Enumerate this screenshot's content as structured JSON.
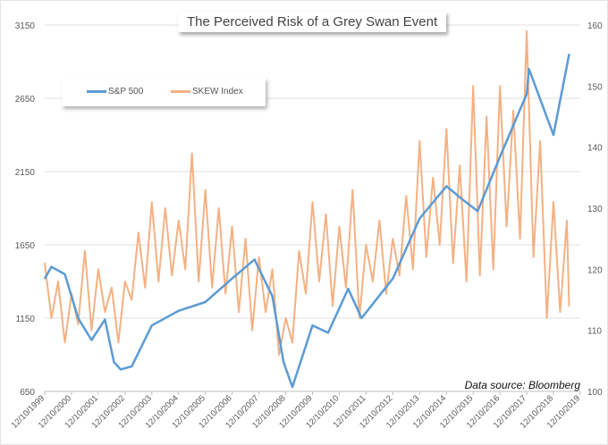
{
  "chart_data": {
    "type": "line",
    "title": "The Perceived Risk of a Grey Swan Event",
    "annotation": "Data source: Bloomberg",
    "legend_position": "top-left",
    "grid": true,
    "y_left": {
      "ylim": [
        650,
        3150
      ],
      "ticks": [
        "650",
        "1150",
        "1650",
        "2150",
        "2650",
        "3150"
      ]
    },
    "y_right": {
      "ylim": [
        100,
        160
      ],
      "ticks": [
        "100",
        "110",
        "120",
        "130",
        "140",
        "150",
        "160"
      ]
    },
    "x_ticks": [
      "12/10/1999",
      "12/10/2000",
      "12/10/2001",
      "12/10/2002",
      "12/10/2003",
      "12/10/2004",
      "12/10/2005",
      "12/10/2006",
      "12/10/2007",
      "12/10/2008",
      "12/10/2009",
      "12/10/2010",
      "12/10/2011",
      "12/10/2012",
      "12/10/2013",
      "12/10/2014",
      "12/10/2015",
      "12/10/2016",
      "12/10/2017",
      "12/10/2018",
      "12/10/2019"
    ],
    "xlim": [
      "1999-12",
      "2019-12"
    ],
    "series": [
      {
        "name": "S&P 500",
        "axis": "left",
        "color": "#5b9bd5",
        "x": [
          "1999-12",
          "2000-03",
          "2000-09",
          "2001-03",
          "2001-09",
          "2002-03",
          "2002-07",
          "2002-10",
          "2003-03",
          "2003-12",
          "2004-12",
          "2005-12",
          "2006-12",
          "2007-10",
          "2008-06",
          "2008-11",
          "2009-03",
          "2009-12",
          "2010-07",
          "2011-04",
          "2011-10",
          "2012-12",
          "2013-12",
          "2014-12",
          "2015-08",
          "2016-02",
          "2016-12",
          "2017-12",
          "2018-01",
          "2018-12",
          "2019-07"
        ],
        "values": [
          1420,
          1500,
          1450,
          1150,
          1000,
          1140,
          850,
          800,
          820,
          1100,
          1200,
          1260,
          1420,
          1550,
          1300,
          850,
          680,
          1100,
          1050,
          1350,
          1150,
          1420,
          1830,
          2050,
          1950,
          1880,
          2250,
          2680,
          2850,
          2400,
          2950
        ]
      },
      {
        "name": "SKEW Index",
        "axis": "right",
        "color": "#f4b183",
        "x": [
          "1999-12",
          "2000-03",
          "2000-06",
          "2000-09",
          "2000-12",
          "2001-03",
          "2001-06",
          "2001-09",
          "2001-12",
          "2002-03",
          "2002-06",
          "2002-09",
          "2002-12",
          "2003-03",
          "2003-06",
          "2003-09",
          "2003-12",
          "2004-03",
          "2004-06",
          "2004-09",
          "2004-12",
          "2005-03",
          "2005-06",
          "2005-09",
          "2005-12",
          "2006-03",
          "2006-06",
          "2006-09",
          "2006-12",
          "2007-03",
          "2007-06",
          "2007-09",
          "2007-12",
          "2008-03",
          "2008-06",
          "2008-09",
          "2008-12",
          "2009-03",
          "2009-06",
          "2009-09",
          "2009-12",
          "2010-03",
          "2010-06",
          "2010-09",
          "2010-12",
          "2011-03",
          "2011-06",
          "2011-09",
          "2011-12",
          "2012-03",
          "2012-06",
          "2012-09",
          "2012-12",
          "2013-03",
          "2013-06",
          "2013-09",
          "2013-12",
          "2014-03",
          "2014-06",
          "2014-09",
          "2014-12",
          "2015-03",
          "2015-06",
          "2015-09",
          "2015-12",
          "2016-03",
          "2016-06",
          "2016-09",
          "2016-12",
          "2017-03",
          "2017-06",
          "2017-09",
          "2017-12",
          "2018-03",
          "2018-06",
          "2018-09",
          "2018-12",
          "2019-03",
          "2019-06",
          "2019-07"
        ],
        "values": [
          121,
          112,
          118,
          108,
          116,
          111,
          123,
          110,
          120,
          113,
          117,
          108,
          118,
          115,
          126,
          117,
          131,
          118,
          130,
          119,
          128,
          120,
          139,
          118,
          133,
          117,
          130,
          116,
          127,
          113,
          125,
          110,
          122,
          113,
          120,
          106,
          112,
          108,
          123,
          116,
          131,
          118,
          129,
          114,
          127,
          117,
          133,
          112,
          124,
          118,
          128,
          116,
          125,
          119,
          132,
          120,
          141,
          122,
          135,
          124,
          143,
          121,
          137,
          118,
          150,
          119,
          145,
          120,
          150,
          127,
          146,
          125,
          159,
          122,
          141,
          112,
          131,
          113,
          128,
          114
        ]
      }
    ]
  }
}
